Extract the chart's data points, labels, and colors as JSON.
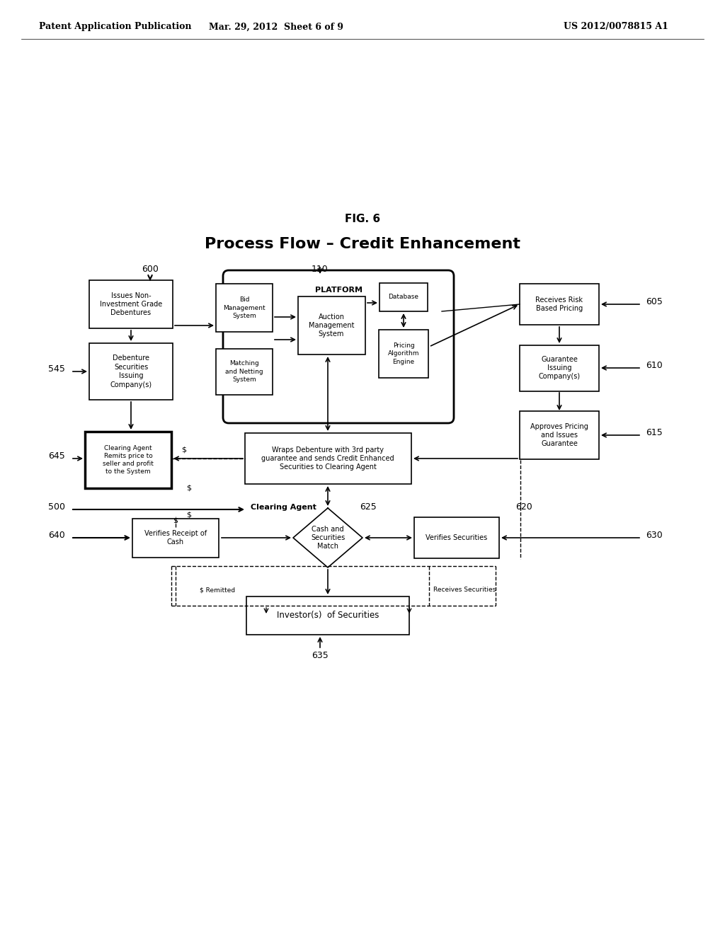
{
  "bg_color": "#ffffff",
  "header_left": "Patent Application Publication",
  "header_mid": "Mar. 29, 2012  Sheet 6 of 9",
  "header_right": "US 2012/0078815 A1",
  "fig_label": "FIG. 6",
  "title": "Process Flow – Credit Enhancement"
}
